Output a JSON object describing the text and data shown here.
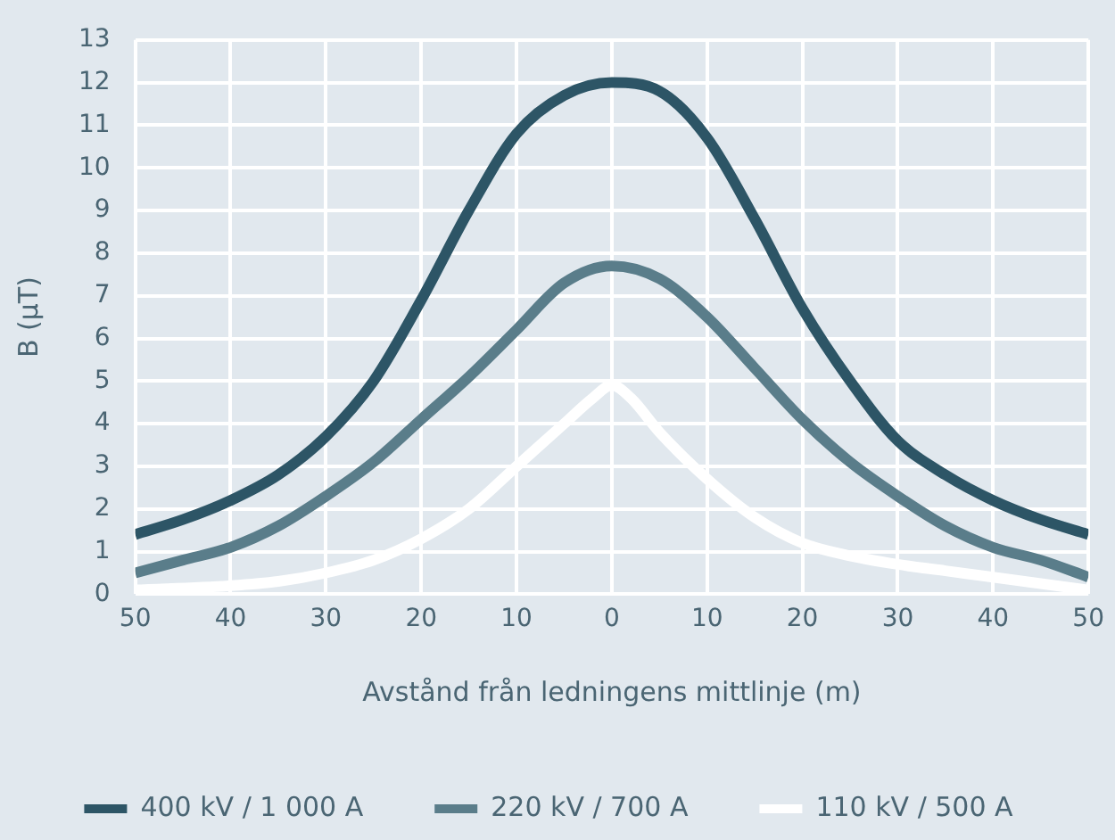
{
  "chart_data": {
    "type": "line",
    "xlabel": "Avstånd från ledningens mittlinje (m)",
    "ylabel": "B (µT)",
    "xlim": [
      -50,
      50
    ],
    "xticks": [
      {
        "value": -50,
        "label": "50"
      },
      {
        "value": -40,
        "label": "40"
      },
      {
        "value": -30,
        "label": "30"
      },
      {
        "value": -20,
        "label": "20"
      },
      {
        "value": -10,
        "label": "10"
      },
      0,
      10,
      20,
      30,
      40,
      50
    ],
    "ylim": [
      0,
      13
    ],
    "yticks": [
      0,
      1,
      2,
      3,
      4,
      5,
      6,
      7,
      8,
      9,
      10,
      11,
      12,
      13
    ],
    "grid": true,
    "legend": "bottom",
    "marker": "none",
    "line_style": "solid",
    "series": [
      {
        "name": "400 kV / 1 000 A",
        "color": "#2d5566",
        "x": [
          -50,
          -45,
          -40,
          -35,
          -30,
          -25,
          -20,
          -15,
          -10,
          -5,
          0,
          5,
          10,
          15,
          20,
          25,
          30,
          35,
          40,
          45,
          50
        ],
        "values": [
          1.4,
          1.75,
          2.2,
          2.8,
          3.7,
          5.0,
          6.9,
          9.0,
          10.8,
          11.7,
          12.0,
          11.8,
          10.7,
          8.8,
          6.7,
          5.0,
          3.6,
          2.8,
          2.2,
          1.75,
          1.4
        ]
      },
      {
        "name": "220 kV / 700 A",
        "color": "#5a7d8a",
        "x": [
          -50,
          -45,
          -40,
          -35,
          -30,
          -25,
          -20,
          -15,
          -10,
          -5,
          0,
          5,
          10,
          15,
          20,
          25,
          30,
          35,
          40,
          45,
          50
        ],
        "values": [
          0.5,
          0.8,
          1.1,
          1.6,
          2.3,
          3.1,
          4.1,
          5.1,
          6.2,
          7.3,
          7.7,
          7.4,
          6.5,
          5.3,
          4.1,
          3.1,
          2.3,
          1.6,
          1.1,
          0.8,
          0.4
        ]
      },
      {
        "name": "110 kV / 500 A",
        "color": "#ffffff",
        "x": [
          -50,
          -40,
          -35,
          -30,
          -25,
          -20,
          -15,
          -10,
          -5,
          -2,
          0,
          2,
          5,
          10,
          15,
          20,
          25,
          30,
          35,
          40,
          45,
          50
        ],
        "values": [
          0.1,
          0.2,
          0.3,
          0.5,
          0.8,
          1.3,
          2.0,
          3.0,
          4.0,
          4.6,
          4.9,
          4.6,
          3.8,
          2.7,
          1.8,
          1.2,
          0.9,
          0.7,
          0.55,
          0.4,
          0.25,
          0.1
        ]
      }
    ]
  }
}
